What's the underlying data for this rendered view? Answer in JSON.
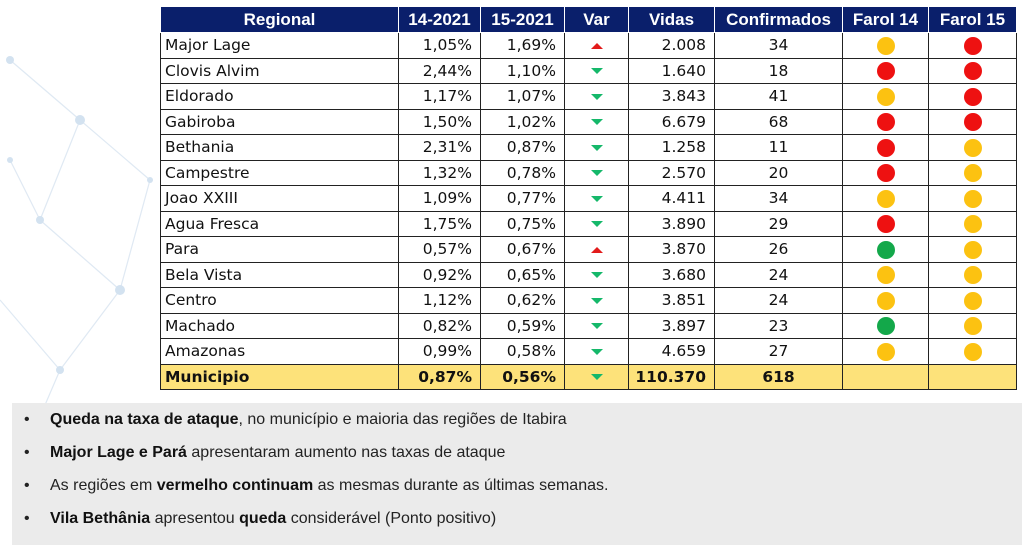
{
  "table": {
    "headers": [
      "Regional",
      "14-2021",
      "15-2021",
      "Var",
      "Vidas",
      "Confirmados",
      "Farol 14",
      "Farol 15"
    ],
    "rows": [
      {
        "regional": "Major Lage",
        "p14": "1,05%",
        "p15": "1,69%",
        "var": "up",
        "vidas": "2.008",
        "confirmados": "34",
        "farol14": "yellow",
        "farol15": "red"
      },
      {
        "regional": "Clovis Alvim",
        "p14": "2,44%",
        "p15": "1,10%",
        "var": "down",
        "vidas": "1.640",
        "confirmados": "18",
        "farol14": "red",
        "farol15": "red"
      },
      {
        "regional": "Eldorado",
        "p14": "1,17%",
        "p15": "1,07%",
        "var": "down",
        "vidas": "3.843",
        "confirmados": "41",
        "farol14": "yellow",
        "farol15": "red"
      },
      {
        "regional": "Gabiroba",
        "p14": "1,50%",
        "p15": "1,02%",
        "var": "down",
        "vidas": "6.679",
        "confirmados": "68",
        "farol14": "red",
        "farol15": "red"
      },
      {
        "regional": "Bethania",
        "p14": "2,31%",
        "p15": "0,87%",
        "var": "down",
        "vidas": "1.258",
        "confirmados": "11",
        "farol14": "red",
        "farol15": "yellow"
      },
      {
        "regional": "Campestre",
        "p14": "1,32%",
        "p15": "0,78%",
        "var": "down",
        "vidas": "2.570",
        "confirmados": "20",
        "farol14": "red",
        "farol15": "yellow"
      },
      {
        "regional": "Joao XXIII",
        "p14": "1,09%",
        "p15": "0,77%",
        "var": "down",
        "vidas": "4.411",
        "confirmados": "34",
        "farol14": "yellow",
        "farol15": "yellow"
      },
      {
        "regional": "Agua Fresca",
        "p14": "1,75%",
        "p15": "0,75%",
        "var": "down",
        "vidas": "3.890",
        "confirmados": "29",
        "farol14": "red",
        "farol15": "yellow"
      },
      {
        "regional": "Para",
        "p14": "0,57%",
        "p15": "0,67%",
        "var": "up",
        "vidas": "3.870",
        "confirmados": "26",
        "farol14": "green",
        "farol15": "yellow"
      },
      {
        "regional": "Bela Vista",
        "p14": "0,92%",
        "p15": "0,65%",
        "var": "down",
        "vidas": "3.680",
        "confirmados": "24",
        "farol14": "yellow",
        "farol15": "yellow"
      },
      {
        "regional": "Centro",
        "p14": "1,12%",
        "p15": "0,62%",
        "var": "down",
        "vidas": "3.851",
        "confirmados": "24",
        "farol14": "yellow",
        "farol15": "yellow"
      },
      {
        "regional": "Machado",
        "p14": "0,82%",
        "p15": "0,59%",
        "var": "down",
        "vidas": "3.897",
        "confirmados": "23",
        "farol14": "green",
        "farol15": "yellow"
      },
      {
        "regional": "Amazonas",
        "p14": "0,99%",
        "p15": "0,58%",
        "var": "down",
        "vidas": "4.659",
        "confirmados": "27",
        "farol14": "yellow",
        "farol15": "yellow"
      }
    ],
    "total": {
      "regional": "Municipio",
      "p14": "0,87%",
      "p15": "0,56%",
      "var": "down",
      "vidas": "110.370",
      "confirmados": "618",
      "farol14": "",
      "farol15": ""
    }
  },
  "colors": {
    "header_bg": "#0a1f6b",
    "total_bg": "#fde27a",
    "red": "#ee1111",
    "yellow": "#fcc211",
    "green": "#13a84a",
    "arrow_up": "#e21b1b",
    "arrow_down": "#15b86a"
  },
  "bullets": [
    [
      {
        "t": "Queda na taxa de ataque",
        "b": true
      },
      {
        "t": ", no município e maioria das regiões de Itabira",
        "b": false
      }
    ],
    [
      {
        "t": " Major Lage e Pará",
        "b": true
      },
      {
        "t": " apresentaram aumento nas taxas de ataque",
        "b": false
      }
    ],
    [
      {
        "t": "As regiões em ",
        "b": false
      },
      {
        "t": "vermelho continuam",
        "b": true
      },
      {
        "t": " as mesmas durante as últimas semanas.",
        "b": false
      }
    ],
    [
      {
        "t": "Vila Bethânia",
        "b": true
      },
      {
        "t": " apresentou ",
        "b": false
      },
      {
        "t": "queda",
        "b": true
      },
      {
        "t": " considerável (Ponto positivo)",
        "b": false
      }
    ]
  ],
  "bullet_char": "•"
}
